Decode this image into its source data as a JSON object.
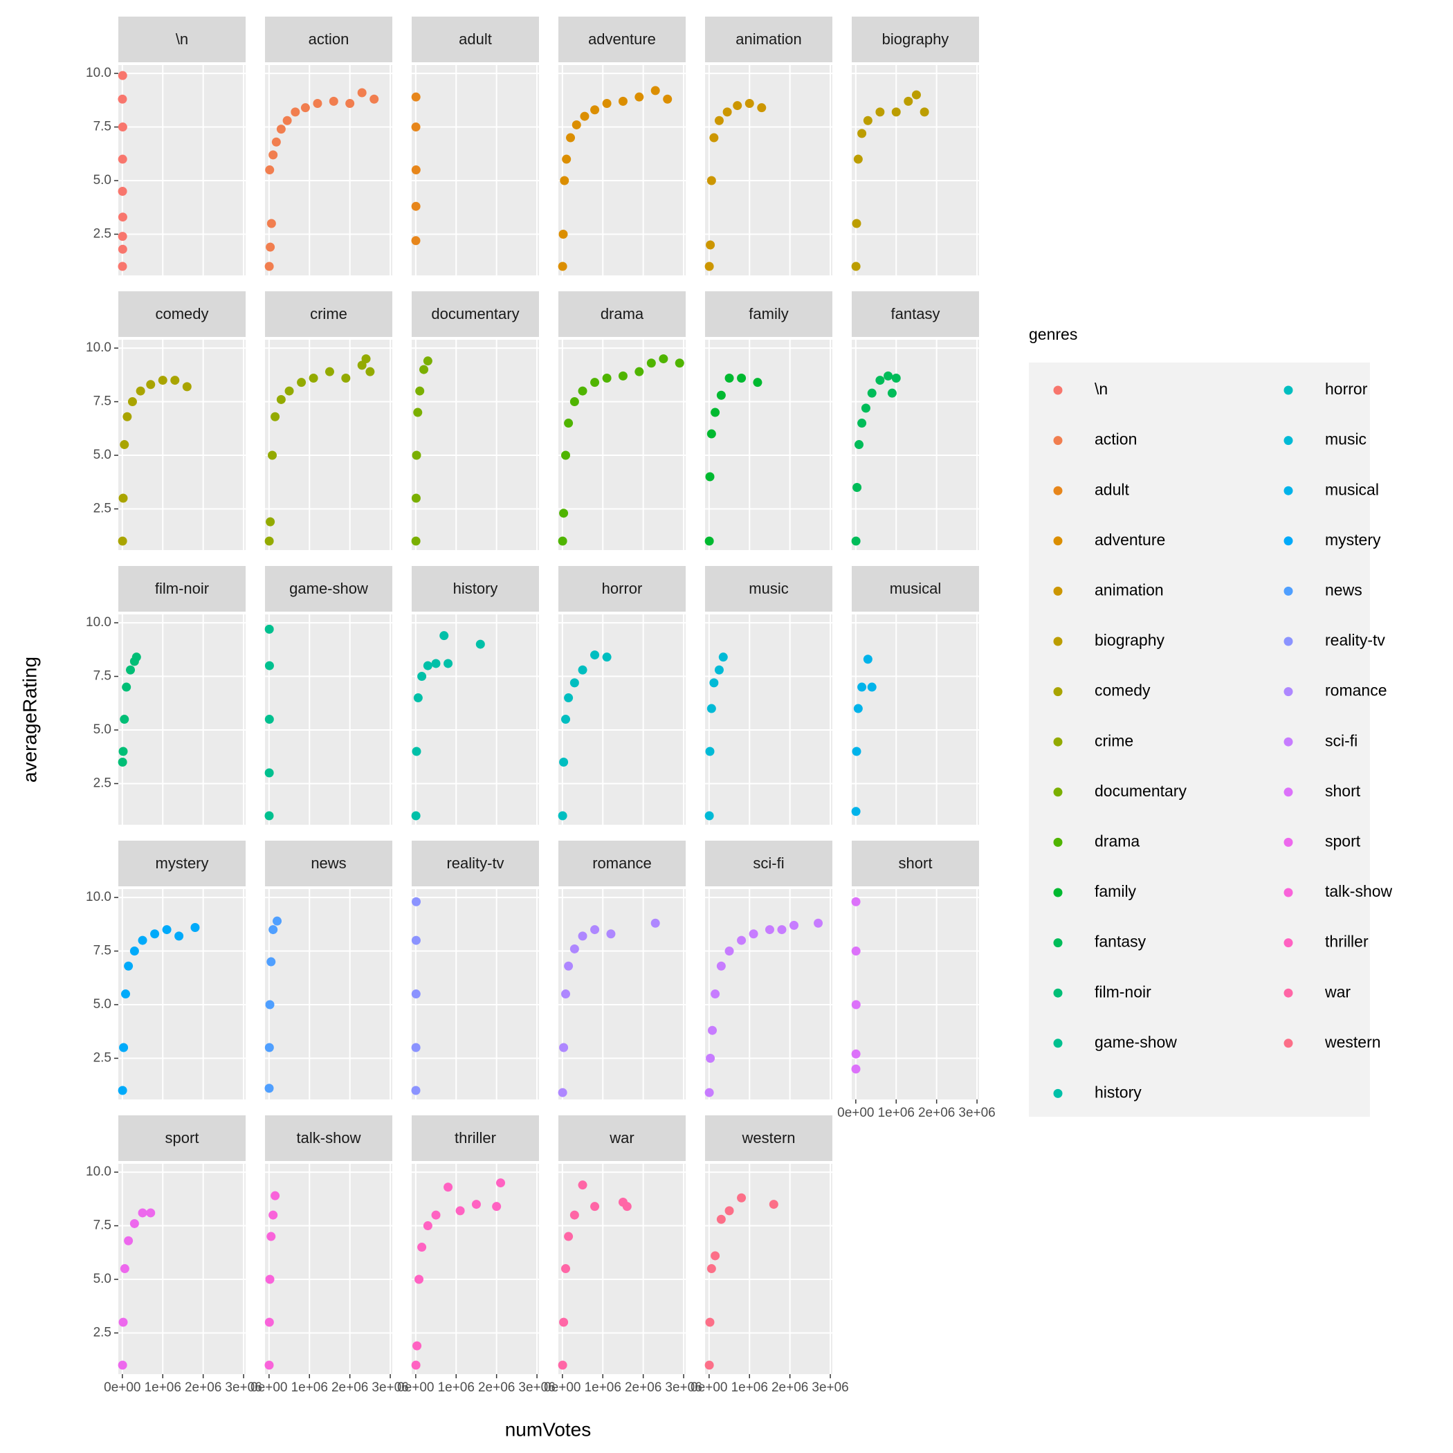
{
  "chart_data": {
    "type": "scatter",
    "xlabel": "numVotes",
    "ylabel": "averageRating",
    "legend_title": "genres",
    "xlim": [
      -100000,
      3050000
    ],
    "xticks": [
      {
        "value": 0,
        "label": "0e+00"
      },
      {
        "value": 1000000,
        "label": "1e+06"
      },
      {
        "value": 2000000,
        "label": "2e+06"
      },
      {
        "value": 3000000,
        "label": "3e+06"
      }
    ],
    "ylim": [
      0.58,
      10.39
    ],
    "yticks": [
      2.5,
      {
        "value": 5,
        "label": "5.0"
      },
      7.5,
      {
        "value": 10,
        "label": "10.0"
      }
    ],
    "grid": true,
    "facets": [
      {
        "name": "\\n",
        "color": "#F8766D",
        "x": [
          3000,
          8000,
          5000,
          10000,
          4000,
          6000,
          9000,
          2000,
          7000
        ],
        "y": [
          1.0,
          1.8,
          2.4,
          3.3,
          4.5,
          6.0,
          7.5,
          8.8,
          9.9
        ]
      },
      {
        "name": "action",
        "color": "#F17E4F",
        "x": [
          5000,
          30000,
          60000,
          15000,
          100000,
          180000,
          300000,
          450000,
          650000,
          900000,
          1200000,
          1600000,
          2000000,
          2300000,
          2600000
        ],
        "y": [
          1.0,
          1.9,
          3.0,
          5.5,
          6.2,
          6.8,
          7.4,
          7.8,
          8.2,
          8.4,
          8.6,
          8.7,
          8.6,
          9.1,
          8.8
        ]
      },
      {
        "name": "adult",
        "color": "#E7861B",
        "x": [
          3000,
          5000,
          8000,
          4000,
          6000
        ],
        "y": [
          2.2,
          3.8,
          5.5,
          7.5,
          8.9
        ]
      },
      {
        "name": "adventure",
        "color": "#DB8E00",
        "x": [
          5000,
          20000,
          50000,
          100000,
          200000,
          350000,
          550000,
          800000,
          1100000,
          1500000,
          1900000,
          2300000,
          2600000
        ],
        "y": [
          1.0,
          2.5,
          5.0,
          6.0,
          7.0,
          7.6,
          8.0,
          8.3,
          8.6,
          8.7,
          8.9,
          9.2,
          8.8
        ]
      },
      {
        "name": "animation",
        "color": "#CC9600",
        "x": [
          5000,
          30000,
          60000,
          120000,
          250000,
          450000,
          700000,
          1000000,
          1300000
        ],
        "y": [
          1.0,
          2.0,
          5.0,
          7.0,
          7.8,
          8.2,
          8.5,
          8.6,
          8.4
        ]
      },
      {
        "name": "biography",
        "color": "#BC9D00",
        "x": [
          5000,
          20000,
          60000,
          150000,
          300000,
          600000,
          1000000,
          1300000,
          1500000,
          1700000
        ],
        "y": [
          1.0,
          3.0,
          6.0,
          7.2,
          7.8,
          8.2,
          8.2,
          8.7,
          9.0,
          8.2
        ]
      },
      {
        "name": "comedy",
        "color": "#A9A400",
        "x": [
          5000,
          20000,
          50000,
          120000,
          250000,
          450000,
          700000,
          1000000,
          1300000,
          1600000
        ],
        "y": [
          1.0,
          3.0,
          5.5,
          6.8,
          7.5,
          8.0,
          8.3,
          8.5,
          8.5,
          8.2
        ]
      },
      {
        "name": "crime",
        "color": "#93AA00",
        "x": [
          5000,
          30000,
          80000,
          150000,
          300000,
          500000,
          800000,
          1100000,
          1500000,
          1900000,
          2300000,
          2400000,
          2500000
        ],
        "y": [
          1.0,
          1.9,
          5.0,
          6.8,
          7.6,
          8.0,
          8.4,
          8.6,
          8.9,
          8.6,
          9.2,
          9.5,
          8.9
        ]
      },
      {
        "name": "documentary",
        "color": "#7AAF00",
        "x": [
          5000,
          10000,
          20000,
          50000,
          100000,
          200000,
          300000
        ],
        "y": [
          1.0,
          3.0,
          5.0,
          7.0,
          8.0,
          9.0,
          9.4
        ]
      },
      {
        "name": "drama",
        "color": "#4FB400",
        "x": [
          5000,
          30000,
          80000,
          150000,
          300000,
          500000,
          800000,
          1100000,
          1500000,
          1900000,
          2200000,
          2500000,
          2900000
        ],
        "y": [
          1.0,
          2.3,
          5.0,
          6.5,
          7.5,
          8.0,
          8.4,
          8.6,
          8.7,
          8.9,
          9.3,
          9.5,
          9.3
        ]
      },
      {
        "name": "family",
        "color": "#00B930",
        "x": [
          5000,
          20000,
          60000,
          150000,
          300000,
          500000,
          800000,
          1200000
        ],
        "y": [
          1.0,
          4.0,
          6.0,
          7.0,
          7.8,
          8.6,
          8.6,
          8.4
        ]
      },
      {
        "name": "fantasy",
        "color": "#00BC59",
        "x": [
          5000,
          30000,
          80000,
          150000,
          250000,
          400000,
          600000,
          800000,
          1000000,
          900000
        ],
        "y": [
          1.0,
          3.5,
          5.5,
          6.5,
          7.2,
          7.9,
          8.5,
          8.7,
          8.6,
          7.9
        ]
      },
      {
        "name": "film-noir",
        "color": "#00BE76",
        "x": [
          5000,
          20000,
          50000,
          100000,
          200000,
          300000,
          350000
        ],
        "y": [
          3.5,
          4.0,
          5.5,
          7.0,
          7.8,
          8.2,
          8.4
        ]
      },
      {
        "name": "game-show",
        "color": "#00C08F",
        "x": [
          3000,
          5000,
          8000,
          10000,
          6000
        ],
        "y": [
          1.0,
          3.0,
          5.5,
          8.0,
          9.7
        ]
      },
      {
        "name": "history",
        "color": "#00C0A8",
        "x": [
          5000,
          20000,
          60000,
          150000,
          300000,
          500000,
          700000,
          800000,
          1600000
        ],
        "y": [
          1.0,
          4.0,
          6.5,
          7.5,
          8.0,
          8.1,
          9.4,
          8.1,
          9.0
        ]
      },
      {
        "name": "horror",
        "color": "#00BEC0",
        "x": [
          5000,
          30000,
          80000,
          150000,
          300000,
          500000,
          800000,
          1100000
        ],
        "y": [
          1.0,
          3.5,
          5.5,
          6.5,
          7.2,
          7.8,
          8.5,
          8.4
        ]
      },
      {
        "name": "music",
        "color": "#00BAD6",
        "x": [
          5000,
          20000,
          60000,
          120000,
          250000,
          350000
        ],
        "y": [
          1.0,
          4.0,
          6.0,
          7.2,
          7.8,
          8.4
        ]
      },
      {
        "name": "musical",
        "color": "#00B3EA",
        "x": [
          5000,
          20000,
          60000,
          150000,
          300000,
          400000
        ],
        "y": [
          1.2,
          4.0,
          6.0,
          7.0,
          8.3,
          7.0
        ]
      },
      {
        "name": "mystery",
        "color": "#00AAFA",
        "x": [
          5000,
          30000,
          80000,
          150000,
          300000,
          500000,
          800000,
          1100000,
          1400000,
          1800000
        ],
        "y": [
          1.0,
          3.0,
          5.5,
          6.8,
          7.5,
          8.0,
          8.3,
          8.5,
          8.2,
          8.6
        ]
      },
      {
        "name": "news",
        "color": "#4F9FFF",
        "x": [
          3000,
          8000,
          20000,
          50000,
          100000,
          200000
        ],
        "y": [
          1.1,
          3.0,
          5.0,
          7.0,
          8.5,
          8.9
        ]
      },
      {
        "name": "reality-tv",
        "color": "#8B93FF",
        "x": [
          3000,
          5000,
          8000,
          10000,
          12000
        ],
        "y": [
          1.0,
          3.0,
          5.5,
          8.0,
          9.8
        ]
      },
      {
        "name": "romance",
        "color": "#AE87FF",
        "x": [
          5000,
          30000,
          80000,
          150000,
          300000,
          500000,
          800000,
          1200000,
          2300000
        ],
        "y": [
          0.9,
          3.0,
          5.5,
          6.8,
          7.6,
          8.2,
          8.5,
          8.3,
          8.8
        ]
      },
      {
        "name": "sci-fi",
        "color": "#C77CFF",
        "x": [
          5000,
          30000,
          80000,
          150000,
          300000,
          500000,
          800000,
          1100000,
          1500000,
          1800000,
          2100000,
          2700000
        ],
        "y": [
          0.9,
          2.5,
          3.8,
          5.5,
          6.8,
          7.5,
          8.0,
          8.3,
          8.5,
          8.5,
          8.7,
          8.8
        ]
      },
      {
        "name": "short",
        "color": "#DC71FA",
        "x": [
          3000,
          5000,
          8000,
          6000,
          4000
        ],
        "y": [
          2.0,
          2.7,
          5.0,
          7.5,
          9.8
        ]
      },
      {
        "name": "sport",
        "color": "#ED68ED",
        "x": [
          5000,
          20000,
          60000,
          150000,
          300000,
          500000,
          700000
        ],
        "y": [
          1.0,
          3.0,
          5.5,
          6.8,
          7.6,
          8.1,
          8.1
        ]
      },
      {
        "name": "talk-show",
        "color": "#F963DA",
        "x": [
          3000,
          8000,
          20000,
          50000,
          100000,
          150000
        ],
        "y": [
          1.0,
          3.0,
          5.0,
          7.0,
          8.0,
          8.9
        ]
      },
      {
        "name": "thriller",
        "color": "#FF62C2",
        "x": [
          5000,
          30000,
          80000,
          150000,
          300000,
          500000,
          800000,
          1100000,
          1500000,
          2000000,
          2100000
        ],
        "y": [
          1.0,
          1.9,
          5.0,
          6.5,
          7.5,
          8.0,
          9.3,
          8.2,
          8.5,
          8.4,
          9.5
        ]
      },
      {
        "name": "war",
        "color": "#FF66A6",
        "x": [
          5000,
          30000,
          80000,
          150000,
          300000,
          500000,
          800000,
          1500000,
          1600000
        ],
        "y": [
          1.0,
          3.0,
          5.5,
          7.0,
          8.0,
          9.4,
          8.4,
          8.6,
          8.4
        ]
      },
      {
        "name": "western",
        "color": "#FC6F88",
        "x": [
          5000,
          20000,
          60000,
          150000,
          300000,
          500000,
          800000,
          1600000
        ],
        "y": [
          1.0,
          3.0,
          5.5,
          6.1,
          7.8,
          8.2,
          8.8,
          8.5
        ]
      }
    ]
  }
}
